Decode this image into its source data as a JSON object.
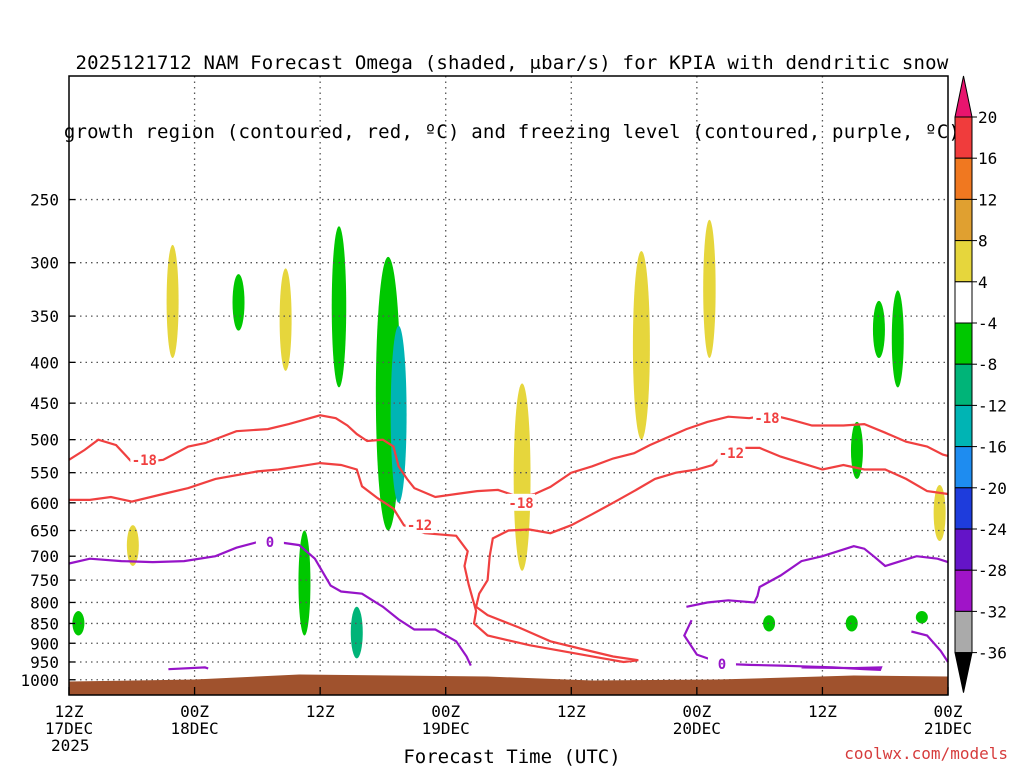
{
  "title": {
    "line1": "2025121712 NAM Forecast Omega (shaded, μbar/s) for KPIA with dendritic snow",
    "line2": "growth region (contoured, red, ºC) and freezing level (contoured, purple, ºC)"
  },
  "footer": {
    "url": "coolwx.com/models"
  },
  "chart_data": {
    "type": "heatmap",
    "xlabel": "Forecast Time (UTC)",
    "ylabel": "",
    "x_range_hours": [
      0,
      84
    ],
    "y_scale": "log-pressure",
    "ylim_hPa": [
      1045,
      175
    ],
    "grid": true,
    "x_ticks": [
      {
        "hour": 0,
        "lines": [
          "12Z",
          "17DEC",
          "2025"
        ]
      },
      {
        "hour": 12,
        "lines": [
          "00Z",
          "18DEC"
        ]
      },
      {
        "hour": 24,
        "lines": [
          "12Z"
        ]
      },
      {
        "hour": 36,
        "lines": [
          "00Z",
          "19DEC"
        ]
      },
      {
        "hour": 48,
        "lines": [
          "12Z"
        ]
      },
      {
        "hour": 60,
        "lines": [
          "00Z",
          "20DEC"
        ]
      },
      {
        "hour": 72,
        "lines": [
          "12Z"
        ]
      },
      {
        "hour": 84,
        "lines": [
          "00Z",
          "21DEC"
        ]
      }
    ],
    "y_ticks": [
      250,
      300,
      350,
      400,
      450,
      500,
      550,
      600,
      650,
      700,
      750,
      800,
      850,
      900,
      950,
      1000
    ],
    "colorbar": {
      "labels": [
        "20",
        "16",
        "12",
        "8",
        "4",
        "-4",
        "-8",
        "-12",
        "-16",
        "-20",
        "-24",
        "-28",
        "-32",
        "-36"
      ],
      "colors": [
        "#e8146e",
        "#f03c3c",
        "#f07820",
        "#e0a030",
        "#e6d63c",
        "#ffffff",
        "#00c800",
        "#00b478",
        "#00b4b4",
        "#1e8cf0",
        "#1e3cdc",
        "#6414c8",
        "#a014c8",
        "#aaaaaa",
        "#000000"
      ]
    },
    "dgz_contours": [
      {
        "label": "-18",
        "color": "#f04040"
      },
      {
        "label": "-12",
        "color": "#f04040"
      }
    ],
    "freezing_contour": {
      "label": "0",
      "color": "#9614c8"
    },
    "omega_features": [
      {
        "hour": 9.9,
        "p_top": 285,
        "p_bot": 395,
        "value": 4,
        "color": "#e6d63c"
      },
      {
        "hour": 16.2,
        "p_top": 310,
        "p_bot": 365,
        "value": -4,
        "color": "#00c800"
      },
      {
        "hour": 20.7,
        "p_top": 305,
        "p_bot": 410,
        "value": 4,
        "color": "#e6d63c"
      },
      {
        "hour": 25.8,
        "p_top": 270,
        "p_bot": 430,
        "value": -4,
        "color": "#00c800"
      },
      {
        "hour": 30.5,
        "p_top": 295,
        "p_bot": 650,
        "value": -8,
        "color": "#00c800"
      },
      {
        "hour": 31.5,
        "p_top": 360,
        "p_bot": 600,
        "value": -12,
        "color": "#00b4b4"
      },
      {
        "hour": 43.3,
        "p_top": 425,
        "p_bot": 730,
        "value": 4,
        "color": "#e6d63c"
      },
      {
        "hour": 54.7,
        "p_top": 290,
        "p_bot": 500,
        "value": 4,
        "color": "#e6d63c"
      },
      {
        "hour": 61.2,
        "p_top": 265,
        "p_bot": 395,
        "value": 4,
        "color": "#e6d63c"
      },
      {
        "hour": 75.3,
        "p_top": 475,
        "p_bot": 560,
        "value": -4,
        "color": "#00c800"
      },
      {
        "hour": 77.4,
        "p_top": 335,
        "p_bot": 395,
        "value": -4,
        "color": "#00c800"
      },
      {
        "hour": 79.2,
        "p_top": 325,
        "p_bot": 430,
        "value": -4,
        "color": "#00c800"
      },
      {
        "hour": 83.2,
        "p_top": 570,
        "p_bot": 670,
        "value": 4,
        "color": "#e6d63c"
      },
      {
        "hour": 22.5,
        "p_top": 650,
        "p_bot": 880,
        "value": -8,
        "color": "#00c800"
      },
      {
        "hour": 27.5,
        "p_top": 810,
        "p_bot": 940,
        "value": -12,
        "color": "#00b478"
      },
      {
        "hour": 6.1,
        "p_top": 640,
        "p_bot": 720,
        "value": 4,
        "color": "#e6d63c"
      },
      {
        "hour": 0.9,
        "p_top": 820,
        "p_bot": 880,
        "value": -4,
        "color": "#00c800"
      },
      {
        "hour": 66.9,
        "p_top": 830,
        "p_bot": 870,
        "value": -4,
        "color": "#00c800"
      },
      {
        "hour": 74.8,
        "p_top": 830,
        "p_bot": 870,
        "value": -4,
        "color": "#00c800"
      },
      {
        "hour": 81.5,
        "p_top": 820,
        "p_bot": 850,
        "value": -4,
        "color": "#00c800"
      }
    ],
    "terrain": {
      "surface_p_min": 985,
      "color": "#a0522d"
    }
  }
}
